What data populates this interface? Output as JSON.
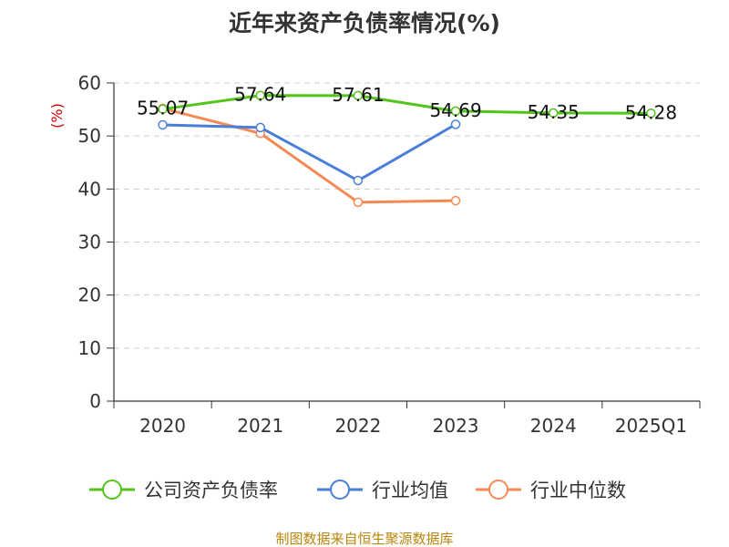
{
  "chart_data": {
    "type": "line",
    "title": "近年来资产负债率情况(%)",
    "ylabel": "(%)",
    "categories": [
      "2020",
      "2021",
      "2022",
      "2023",
      "2024",
      "2025Q1"
    ],
    "y_ticks": [
      "0",
      "10",
      "20",
      "30",
      "40",
      "50",
      "60"
    ],
    "ylim": [
      0,
      60
    ],
    "grid": true,
    "legend_position": "bottom",
    "series": [
      {
        "name": "公司资产负债率",
        "color": "#52c41a",
        "values": [
          55.07,
          57.64,
          57.61,
          54.69,
          54.35,
          54.28
        ],
        "labels": [
          "55.07",
          "57.64",
          "57.61",
          "54.69",
          "54.35",
          "54.28"
        ]
      },
      {
        "name": "行业均值",
        "color": "#4a7fd8",
        "values": [
          52.1,
          51.6,
          41.6,
          52.2,
          null,
          null
        ]
      },
      {
        "name": "行业中位数",
        "color": "#f58a55",
        "values": [
          55.2,
          50.5,
          37.5,
          37.8,
          null,
          null
        ]
      }
    ],
    "source": "制图数据来自恒生聚源数据库"
  }
}
